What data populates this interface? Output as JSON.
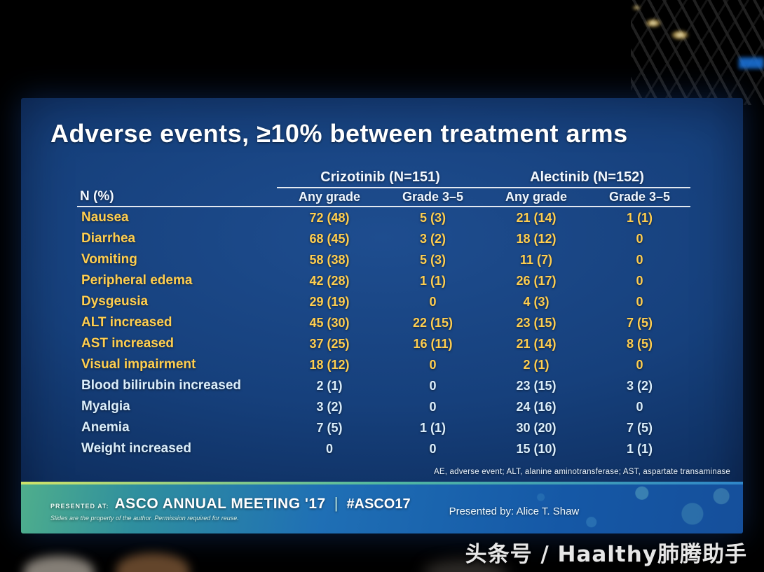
{
  "slide": {
    "title": "Adverse events, ≥10% between treatment arms",
    "table": {
      "corner_label": "N (%)",
      "group_headers": [
        "Crizotinib (N=151)",
        "Alectinib (N=152)"
      ],
      "sub_headers": [
        "Any grade",
        "Grade 3–5",
        "Any grade",
        "Grade 3–5"
      ],
      "rows": [
        {
          "label": "Nausea",
          "values": [
            "72 (48)",
            "5 (3)",
            "21 (14)",
            "1 (1)"
          ]
        },
        {
          "label": "Diarrhea",
          "values": [
            "68 (45)",
            "3 (2)",
            "18 (12)",
            "0"
          ]
        },
        {
          "label": "Vomiting",
          "values": [
            "58 (38)",
            "5 (3)",
            "11 (7)",
            "0"
          ]
        },
        {
          "label": "Peripheral edema",
          "values": [
            "42 (28)",
            "1 (1)",
            "26 (17)",
            "0"
          ]
        },
        {
          "label": "Dysgeusia",
          "values": [
            "29 (19)",
            "0",
            "4 (3)",
            "0"
          ]
        },
        {
          "label": "ALT increased",
          "values": [
            "45 (30)",
            "22 (15)",
            "23 (15)",
            "7 (5)"
          ]
        },
        {
          "label": "AST increased",
          "values": [
            "37 (25)",
            "16 (11)",
            "21 (14)",
            "8 (5)"
          ]
        },
        {
          "label": "Visual impairment",
          "values": [
            "18 (12)",
            "0",
            "2 (1)",
            "0"
          ]
        },
        {
          "label": "Blood bilirubin increased",
          "values": [
            "2 (1)",
            "0",
            "23 (15)",
            "3 (2)"
          ]
        },
        {
          "label": "Myalgia",
          "values": [
            "3 (2)",
            "0",
            "24 (16)",
            "0"
          ]
        },
        {
          "label": "Anemia",
          "values": [
            "7 (5)",
            "1 (1)",
            "30 (20)",
            "7 (5)"
          ]
        },
        {
          "label": "Weight increased",
          "values": [
            "0",
            "0",
            "15 (10)",
            "1 (1)"
          ]
        }
      ]
    },
    "footnote": "AE, adverse event; ALT, alanine aminotransferase; AST, aspartate transaminase"
  },
  "banner": {
    "presented_at": "PRESENTED AT:",
    "meeting": "ASCO ANNUAL MEETING '17",
    "divider": "|",
    "hashtag": "#ASCO17",
    "reuse_note": "Slides are the property of the author. Permission required for reuse.",
    "presented_by": "Presented by:  Alice T. Shaw"
  },
  "watermark": "头条号 / Haalthy肺腾助手",
  "colors": {
    "gold_text": "#ffce4f",
    "light_text": "#dbeefb",
    "slide_background": "#0c2a58",
    "banner_teal": "#4fae8c",
    "banner_blue": "#1558a6"
  },
  "chart_data": {
    "type": "table",
    "title": "Adverse events, ≥10% between treatment arms",
    "column_groups": [
      "Crizotinib (N=151)",
      "Alectinib (N=152)"
    ],
    "columns": [
      "N (%)",
      "Crizotinib Any grade",
      "Crizotinib Grade 3–5",
      "Alectinib Any grade",
      "Alectinib Grade 3–5"
    ],
    "rows": [
      [
        "Nausea",
        "72 (48)",
        "5 (3)",
        "21 (14)",
        "1 (1)"
      ],
      [
        "Diarrhea",
        "68 (45)",
        "3 (2)",
        "18 (12)",
        "0"
      ],
      [
        "Vomiting",
        "58 (38)",
        "5 (3)",
        "11 (7)",
        "0"
      ],
      [
        "Peripheral edema",
        "42 (28)",
        "1 (1)",
        "26 (17)",
        "0"
      ],
      [
        "Dysgeusia",
        "29 (19)",
        "0",
        "4 (3)",
        "0"
      ],
      [
        "ALT increased",
        "45 (30)",
        "22 (15)",
        "23 (15)",
        "7 (5)"
      ],
      [
        "AST increased",
        "37 (25)",
        "16 (11)",
        "21 (14)",
        "8 (5)"
      ],
      [
        "Visual impairment",
        "18 (12)",
        "0",
        "2 (1)",
        "0"
      ],
      [
        "Blood bilirubin increased",
        "2 (1)",
        "0",
        "23 (15)",
        "3 (2)"
      ],
      [
        "Myalgia",
        "3 (2)",
        "0",
        "24 (16)",
        "0"
      ],
      [
        "Anemia",
        "7 (5)",
        "1 (1)",
        "30 (20)",
        "7 (5)"
      ],
      [
        "Weight increased",
        "0",
        "0",
        "15 (10)",
        "1 (1)"
      ]
    ],
    "footnote": "AE, adverse event; ALT, alanine aminotransferase; AST, aspartate transaminase"
  }
}
